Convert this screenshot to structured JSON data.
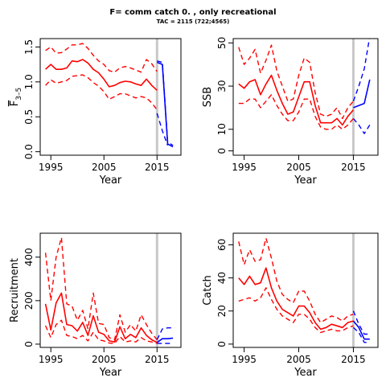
{
  "title": "F= comm catch 0. , only recreational",
  "subtitle": "TAC = 2115 (722;4565)",
  "colors": {
    "historic": "#ff0000",
    "projection": "#0000ff",
    "ref_line": "#c8c8c8",
    "axis": "#000000"
  },
  "chart_data": [
    {
      "type": "line",
      "xlabel": "Year",
      "ylabel_main": "F",
      "ylabel_sub": "3–5",
      "xlim": [
        1993,
        2019.5
      ],
      "ylim": [
        -0.05,
        1.62
      ],
      "xticks": [
        1995,
        2005,
        2015
      ],
      "yticks": [
        0.0,
        0.5,
        1.0,
        1.5
      ],
      "ytick_labels": [
        "0.0",
        "0.5",
        "1.0",
        "1.5"
      ],
      "ref_year": 2015,
      "x": [
        1994,
        1995,
        1996,
        1997,
        1998,
        1999,
        2000,
        2001,
        2002,
        2003,
        2004,
        2005,
        2006,
        2007,
        2008,
        2009,
        2010,
        2011,
        2012,
        2013,
        2014,
        2015
      ],
      "series": [
        {
          "role": "median",
          "color": "historic",
          "dash": false,
          "values": [
            1.18,
            1.25,
            1.18,
            1.18,
            1.2,
            1.3,
            1.29,
            1.32,
            1.27,
            1.18,
            1.13,
            1.04,
            0.93,
            0.95,
            0.99,
            1.01,
            1.0,
            0.97,
            0.95,
            1.04,
            0.95,
            0.88
          ]
        },
        {
          "role": "upper",
          "color": "historic",
          "dash": true,
          "values": [
            1.45,
            1.5,
            1.41,
            1.42,
            1.47,
            1.53,
            1.53,
            1.55,
            1.48,
            1.38,
            1.3,
            1.25,
            1.16,
            1.14,
            1.2,
            1.22,
            1.2,
            1.17,
            1.14,
            1.32,
            1.26,
            1.15
          ]
        },
        {
          "role": "lower",
          "color": "historic",
          "dash": true,
          "values": [
            0.95,
            1.03,
            0.98,
            1.0,
            1.02,
            1.08,
            1.09,
            1.1,
            1.06,
            0.99,
            0.94,
            0.86,
            0.75,
            0.79,
            0.83,
            0.83,
            0.8,
            0.77,
            0.79,
            0.77,
            0.7,
            0.6
          ]
        },
        {
          "role": "proj-median",
          "color": "projection",
          "dash": false,
          "x": [
            2015,
            2016,
            2017,
            2018
          ],
          "values": [
            1.28,
            1.25,
            0.11,
            0.07
          ]
        },
        {
          "role": "proj-upper",
          "color": "projection",
          "dash": true,
          "x": [
            2015,
            2016,
            2017,
            2018
          ],
          "values": [
            1.3,
            1.28,
            0.14,
            0.09
          ]
        },
        {
          "role": "proj-lower",
          "color": "projection",
          "dash": true,
          "x": [
            2015,
            2016,
            2017
          ],
          "values": [
            0.55,
            0.3,
            0.09
          ]
        }
      ]
    },
    {
      "type": "line",
      "xlabel": "Year",
      "ylabel_main": "SSB",
      "ylabel_sub": "",
      "xlim": [
        1993,
        2019.5
      ],
      "ylim": [
        -2,
        52
      ],
      "xticks": [
        1995,
        2005,
        2015
      ],
      "yticks": [
        0,
        10,
        30,
        50
      ],
      "ytick_labels": [
        "0",
        "10",
        "30",
        "50"
      ],
      "ref_year": 2015,
      "x": [
        1994,
        1995,
        1996,
        1997,
        1998,
        1999,
        2000,
        2001,
        2002,
        2003,
        2004,
        2005,
        2006,
        2007,
        2008,
        2009,
        2010,
        2011,
        2012,
        2013,
        2014,
        2015
      ],
      "series": [
        {
          "role": "median",
          "color": "historic",
          "dash": false,
          "values": [
            31,
            29,
            32,
            33,
            26,
            31,
            35,
            28,
            22,
            17,
            18,
            25,
            32,
            32,
            21,
            13,
            13,
            13,
            15,
            12,
            16,
            19
          ]
        },
        {
          "role": "upper",
          "color": "historic",
          "dash": true,
          "values": [
            48,
            40,
            43,
            47,
            36,
            42,
            49,
            37,
            30,
            23,
            24,
            35,
            43,
            41,
            27,
            17,
            16,
            17,
            20,
            15,
            20,
            23
          ]
        },
        {
          "role": "lower",
          "color": "historic",
          "dash": true,
          "values": [
            22,
            22,
            24,
            24,
            20,
            23,
            26,
            21,
            17,
            14,
            14,
            18,
            24,
            24,
            16,
            11,
            10,
            10,
            12,
            10,
            12,
            15
          ]
        },
        {
          "role": "proj-median",
          "color": "projection",
          "dash": false,
          "x": [
            2015,
            2016,
            2017,
            2018
          ],
          "values": [
            20,
            21,
            22,
            33
          ]
        },
        {
          "role": "proj-upper",
          "color": "projection",
          "dash": true,
          "x": [
            2015,
            2016,
            2017,
            2018
          ],
          "values": [
            23,
            30,
            38,
            53
          ]
        },
        {
          "role": "proj-lower",
          "color": "projection",
          "dash": true,
          "x": [
            2015,
            2016,
            2017,
            2018
          ],
          "values": [
            15,
            12,
            8,
            12
          ]
        }
      ]
    },
    {
      "type": "line",
      "xlabel": "Year",
      "ylabel_main": "Recruitment",
      "ylabel_sub": "",
      "xlim": [
        1993,
        2019.5
      ],
      "ylim": [
        -15,
        510
      ],
      "xticks": [
        1995,
        2005,
        2015
      ],
      "yticks": [
        0,
        200,
        400
      ],
      "ytick_labels": [
        "0",
        "200",
        "400"
      ],
      "ref_year": 2015,
      "x": [
        1994,
        1995,
        1996,
        1997,
        1998,
        1999,
        2000,
        2001,
        2002,
        2003,
        2004,
        2005,
        2006,
        2007,
        2008,
        2009,
        2010,
        2011,
        2012,
        2013,
        2014,
        2015
      ],
      "series": [
        {
          "role": "median",
          "color": "historic",
          "dash": false,
          "values": [
            185,
            65,
            190,
            235,
            90,
            85,
            60,
            100,
            40,
            130,
            55,
            45,
            15,
            10,
            80,
            25,
            45,
            30,
            75,
            40,
            20,
            8
          ]
        },
        {
          "role": "upper",
          "color": "historic",
          "dash": true,
          "values": [
            420,
            200,
            400,
            490,
            185,
            175,
            110,
            155,
            70,
            235,
            95,
            90,
            30,
            20,
            135,
            55,
            90,
            60,
            135,
            90,
            50,
            20
          ]
        },
        {
          "role": "lower",
          "color": "historic",
          "dash": true,
          "values": [
            85,
            30,
            90,
            110,
            40,
            35,
            25,
            40,
            15,
            55,
            20,
            15,
            5,
            3,
            35,
            10,
            15,
            10,
            30,
            15,
            10,
            3
          ]
        },
        {
          "role": "proj-median",
          "color": "projection",
          "dash": false,
          "x": [
            2015,
            2016,
            2017,
            2018
          ],
          "values": [
            8,
            25,
            25,
            28
          ]
        },
        {
          "role": "proj-upper",
          "color": "projection",
          "dash": true,
          "x": [
            2015,
            2016,
            2017,
            2018
          ],
          "values": [
            20,
            70,
            75,
            75
          ]
        },
        {
          "role": "proj-lower",
          "color": "projection",
          "dash": true,
          "x": [
            2015,
            2016,
            2017,
            2018
          ],
          "values": [
            3,
            3,
            3,
            3
          ]
        }
      ]
    },
    {
      "type": "line",
      "xlabel": "Year",
      "ylabel_main": "Catch",
      "ylabel_sub": "",
      "xlim": [
        1993,
        2019.5
      ],
      "ylim": [
        -2,
        67
      ],
      "xticks": [
        1995,
        2005,
        2015
      ],
      "yticks": [
        0,
        20,
        40,
        60
      ],
      "ytick_labels": [
        "0",
        "20",
        "40",
        "60"
      ],
      "ref_year": 2015,
      "x": [
        1994,
        1995,
        1996,
        1997,
        1998,
        1999,
        2000,
        2001,
        2002,
        2003,
        2004,
        2005,
        2006,
        2007,
        2008,
        2009,
        2010,
        2011,
        2012,
        2013,
        2014,
        2015
      ],
      "series": [
        {
          "role": "median",
          "color": "historic",
          "dash": false,
          "values": [
            40,
            36,
            41,
            36,
            37,
            46,
            34,
            26,
            21,
            19,
            17,
            23,
            23,
            19,
            13,
            9,
            10,
            12,
            11,
            10,
            13,
            14
          ]
        },
        {
          "role": "upper",
          "color": "historic",
          "dash": true,
          "values": [
            62,
            48,
            57,
            50,
            51,
            64,
            52,
            38,
            30,
            27,
            25,
            32,
            32,
            26,
            18,
            13,
            15,
            17,
            16,
            14,
            17,
            18
          ]
        },
        {
          "role": "lower",
          "color": "historic",
          "dash": true,
          "values": [
            26,
            27,
            28,
            26,
            28,
            34,
            27,
            21,
            17,
            15,
            13,
            18,
            18,
            15,
            10,
            7,
            8,
            9,
            8,
            8,
            10,
            11
          ]
        },
        {
          "role": "proj-median",
          "color": "projection",
          "dash": false,
          "x": [
            2015,
            2016,
            2017,
            2018
          ],
          "values": [
            14,
            10,
            3,
            3
          ]
        },
        {
          "role": "proj-upper",
          "color": "projection",
          "dash": true,
          "x": [
            2015,
            2016,
            2017,
            2018
          ],
          "values": [
            20,
            12,
            6,
            6
          ]
        },
        {
          "role": "proj-lower",
          "color": "projection",
          "dash": true,
          "x": [
            2015,
            2016,
            2017,
            2018
          ],
          "values": [
            10,
            7,
            1,
            1
          ]
        }
      ]
    }
  ]
}
